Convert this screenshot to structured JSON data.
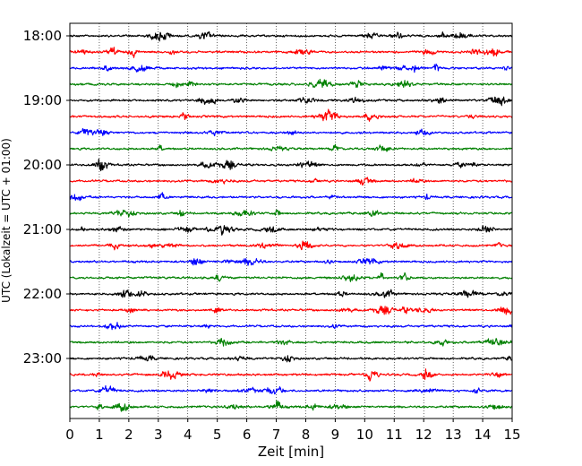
{
  "chart_data": {
    "type": "line",
    "subtype": "helicorder",
    "xlabel": "Zeit  [min]",
    "ylabel": "UTC (Lokalzeit = UTC + 01:00)",
    "x_ticks": [
      0,
      1,
      2,
      3,
      4,
      5,
      6,
      7,
      8,
      9,
      10,
      11,
      12,
      13,
      14,
      15
    ],
    "xlim": [
      0,
      15
    ],
    "x_grid": "dotted",
    "y_tick_labels": [
      "18:00",
      "19:00",
      "20:00",
      "21:00",
      "22:00",
      "23:00"
    ],
    "trace_count": 24,
    "minutes_per_trace": 15,
    "trace_colors": [
      "#000000",
      "#ff0000",
      "#0000ff",
      "#008000"
    ],
    "traces": [
      {
        "start": "18:00",
        "color": "#000000"
      },
      {
        "start": "18:15",
        "color": "#ff0000"
      },
      {
        "start": "18:30",
        "color": "#0000ff"
      },
      {
        "start": "18:45",
        "color": "#008000"
      },
      {
        "start": "19:00",
        "color": "#000000"
      },
      {
        "start": "19:15",
        "color": "#ff0000"
      },
      {
        "start": "19:30",
        "color": "#0000ff"
      },
      {
        "start": "19:45",
        "color": "#008000"
      },
      {
        "start": "20:00",
        "color": "#000000"
      },
      {
        "start": "20:15",
        "color": "#ff0000"
      },
      {
        "start": "20:30",
        "color": "#0000ff"
      },
      {
        "start": "20:45",
        "color": "#008000"
      },
      {
        "start": "21:00",
        "color": "#000000"
      },
      {
        "start": "21:15",
        "color": "#ff0000"
      },
      {
        "start": "21:30",
        "color": "#0000ff"
      },
      {
        "start": "21:45",
        "color": "#008000"
      },
      {
        "start": "22:00",
        "color": "#000000"
      },
      {
        "start": "22:15",
        "color": "#ff0000"
      },
      {
        "start": "22:30",
        "color": "#0000ff"
      },
      {
        "start": "22:45",
        "color": "#008000"
      },
      {
        "start": "23:00",
        "color": "#000000"
      },
      {
        "start": "23:15",
        "color": "#ff0000"
      },
      {
        "start": "23:30",
        "color": "#0000ff"
      },
      {
        "start": "23:45",
        "color": "#008000"
      }
    ]
  }
}
